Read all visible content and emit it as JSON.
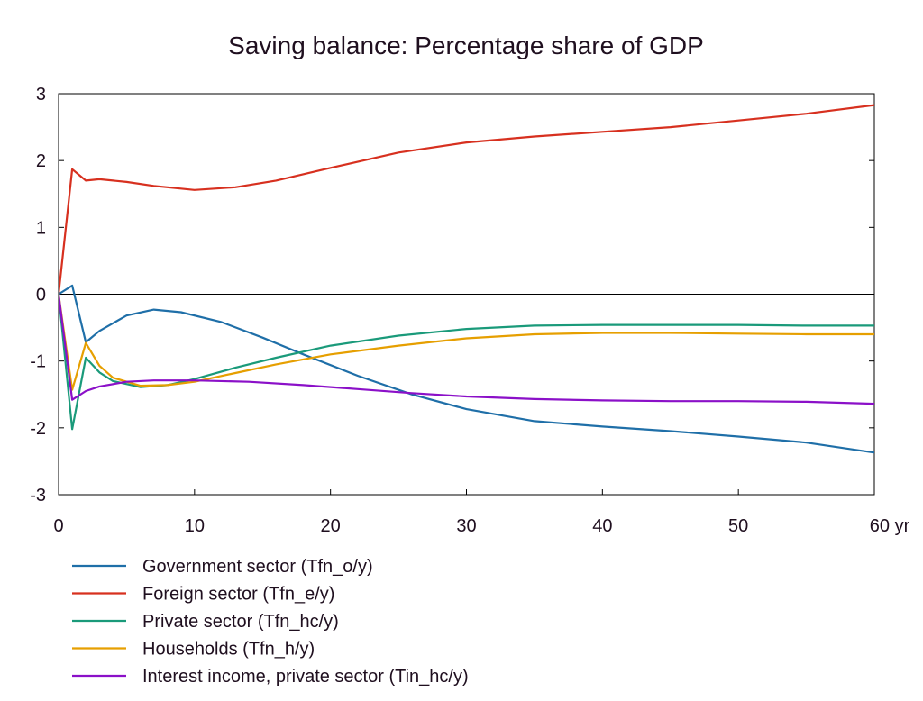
{
  "chart_data": {
    "type": "line",
    "title": "Saving balance: Percentage share of GDP",
    "x_unit_label": "yr",
    "xlim": [
      0,
      60
    ],
    "ylim": [
      -3,
      3
    ],
    "x_ticks": [
      0,
      10,
      20,
      30,
      40,
      50,
      60
    ],
    "y_ticks": [
      -3,
      -2,
      -1,
      0,
      1,
      2,
      3
    ],
    "zero_line": true,
    "grid": false,
    "legend_position": "bottom",
    "series": [
      {
        "name": "Government sector (Tfn_o/y)",
        "color": "#1f6fa8",
        "points": [
          [
            0,
            0
          ],
          [
            1,
            0.13
          ],
          [
            2,
            -0.72
          ],
          [
            3,
            -0.55
          ],
          [
            5,
            -0.32
          ],
          [
            7,
            -0.23
          ],
          [
            9,
            -0.27
          ],
          [
            12,
            -0.42
          ],
          [
            15,
            -0.65
          ],
          [
            18,
            -0.9
          ],
          [
            22,
            -1.22
          ],
          [
            26,
            -1.5
          ],
          [
            30,
            -1.72
          ],
          [
            35,
            -1.9
          ],
          [
            40,
            -1.98
          ],
          [
            45,
            -2.05
          ],
          [
            50,
            -2.13
          ],
          [
            55,
            -2.22
          ],
          [
            60,
            -2.37
          ]
        ]
      },
      {
        "name": "Foreign sector (Tfn_e/y)",
        "color": "#d7301f",
        "points": [
          [
            0,
            0
          ],
          [
            1,
            1.87
          ],
          [
            2,
            1.7
          ],
          [
            3,
            1.72
          ],
          [
            5,
            1.68
          ],
          [
            7,
            1.62
          ],
          [
            10,
            1.56
          ],
          [
            13,
            1.6
          ],
          [
            16,
            1.7
          ],
          [
            20,
            1.89
          ],
          [
            25,
            2.12
          ],
          [
            30,
            2.27
          ],
          [
            35,
            2.36
          ],
          [
            40,
            2.43
          ],
          [
            45,
            2.5
          ],
          [
            50,
            2.6
          ],
          [
            55,
            2.7
          ],
          [
            60,
            2.83
          ]
        ]
      },
      {
        "name": "Private sector (Tfn_hc/y)",
        "color": "#1a9a7a",
        "points": [
          [
            0,
            0
          ],
          [
            1,
            -2.02
          ],
          [
            2,
            -0.95
          ],
          [
            3,
            -1.17
          ],
          [
            4,
            -1.3
          ],
          [
            6,
            -1.39
          ],
          [
            8,
            -1.36
          ],
          [
            10,
            -1.27
          ],
          [
            13,
            -1.1
          ],
          [
            16,
            -0.95
          ],
          [
            20,
            -0.77
          ],
          [
            25,
            -0.62
          ],
          [
            30,
            -0.52
          ],
          [
            35,
            -0.47
          ],
          [
            40,
            -0.46
          ],
          [
            45,
            -0.46
          ],
          [
            50,
            -0.46
          ],
          [
            55,
            -0.47
          ],
          [
            60,
            -0.47
          ]
        ]
      },
      {
        "name": "Households (Tfn_h/y)",
        "color": "#e69f00",
        "points": [
          [
            0,
            0
          ],
          [
            1,
            -1.43
          ],
          [
            2,
            -0.73
          ],
          [
            3,
            -1.07
          ],
          [
            4,
            -1.25
          ],
          [
            6,
            -1.37
          ],
          [
            8,
            -1.36
          ],
          [
            10,
            -1.31
          ],
          [
            13,
            -1.18
          ],
          [
            16,
            -1.05
          ],
          [
            20,
            -0.9
          ],
          [
            25,
            -0.77
          ],
          [
            30,
            -0.66
          ],
          [
            35,
            -0.6
          ],
          [
            40,
            -0.58
          ],
          [
            45,
            -0.58
          ],
          [
            50,
            -0.59
          ],
          [
            55,
            -0.6
          ],
          [
            60,
            -0.6
          ]
        ]
      },
      {
        "name": "Interest income, private sector (Tin_hc/y)",
        "color": "#8b10c8",
        "points": [
          [
            0,
            0
          ],
          [
            1,
            -1.58
          ],
          [
            2,
            -1.45
          ],
          [
            3,
            -1.38
          ],
          [
            5,
            -1.31
          ],
          [
            7,
            -1.29
          ],
          [
            10,
            -1.29
          ],
          [
            14,
            -1.31
          ],
          [
            18,
            -1.36
          ],
          [
            22,
            -1.42
          ],
          [
            26,
            -1.48
          ],
          [
            30,
            -1.53
          ],
          [
            35,
            -1.57
          ],
          [
            40,
            -1.59
          ],
          [
            45,
            -1.6
          ],
          [
            50,
            -1.6
          ],
          [
            55,
            -1.61
          ],
          [
            60,
            -1.64
          ]
        ]
      }
    ]
  }
}
